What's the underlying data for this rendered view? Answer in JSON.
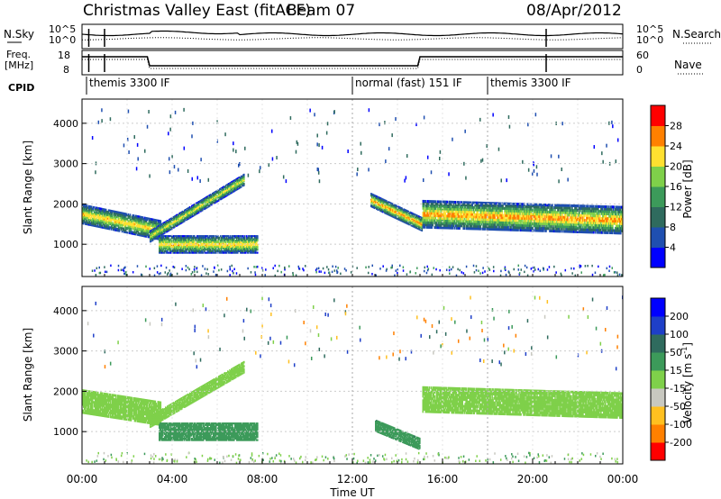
{
  "header": {
    "title": "Christmas Valley East (fitACF)",
    "beam": "Beam 07",
    "date": "08/Apr/2012"
  },
  "status_panel": {
    "left_labels": {
      "nsky": "N.Sky",
      "freq_line1": "Freq.",
      "freq_line2": "[MHz]",
      "cpid": "CPID"
    },
    "right_labels": {
      "nsearch": "N.Search",
      "nave": "Nave"
    },
    "nsky_ticks": [
      "10^5",
      "10^0"
    ],
    "freq_ticks": [
      "18",
      "8"
    ],
    "nsearch_ticks": [
      "10^5",
      "10^0"
    ],
    "nave_ticks": [
      "60",
      "0"
    ],
    "cpid_modes": [
      {
        "name": "themis 3300 IF",
        "start": 0.0,
        "end": 12.0
      },
      {
        "name": "normal (fast) 151 IF",
        "start": 12.0,
        "end": 18.0
      },
      {
        "name": "themis 3300 IF",
        "start": 18.0,
        "end": 24.0
      }
    ]
  },
  "x_axis": {
    "label": "Time UT",
    "ticks": [
      "00:00",
      "04:00",
      "08:00",
      "12:00",
      "16:00",
      "20:00",
      "00:00"
    ]
  },
  "colorbars": {
    "power": {
      "label": "Power [dB]",
      "ticks": [
        "28",
        "24",
        "20",
        "16",
        "12",
        "8",
        "4"
      ],
      "colors": [
        "#0000ff",
        "#1f4fb0",
        "#2f6b5e",
        "#3c9a5a",
        "#7fd04a",
        "#ffe030",
        "#ff8000",
        "#ff0000"
      ]
    },
    "velocity": {
      "label_main": "Velocity [m s",
      "label_sup": "-1",
      "label_end": "]",
      "ticks": [
        "200",
        "100",
        "50",
        "15",
        "-15",
        "-50",
        "-100",
        "-200"
      ],
      "colors": [
        "#0000ff",
        "#1e3fc8",
        "#2f6b5e",
        "#3c9a5a",
        "#7fd04a",
        "#c8c8c0",
        "#ffc020",
        "#ff8000",
        "#ff0000"
      ]
    }
  },
  "chart_data": [
    {
      "type": "heatmap",
      "panel": "power",
      "ylabel": "Slant Range [km]",
      "yticks": [
        "4000",
        "3000",
        "2000",
        "1000"
      ],
      "ylim": [
        200,
        4600
      ],
      "xlim": [
        0,
        24
      ],
      "grid": true,
      "features": [
        {
          "name": "main echo band (00-04 UT)",
          "t_start": 0.0,
          "t_end": 3.5,
          "range_center_start": 1750,
          "range_center_end": 1350,
          "width_km": 500,
          "peak_power_db": 24
        },
        {
          "name": "rising band (03-07 UT)",
          "t_start": 3.0,
          "t_end": 7.2,
          "range_center_start": 1200,
          "range_center_end": 2600,
          "width_km": 300,
          "peak_power_db": 22
        },
        {
          "name": "ground scatter patch",
          "t_start": 3.4,
          "t_end": 7.8,
          "range_center_start": 1000,
          "range_center_end": 1000,
          "width_km": 450,
          "peak_power_db": 24
        },
        {
          "name": "afternoon band (13-15 UT)",
          "t_start": 12.8,
          "t_end": 15.1,
          "range_center_start": 2100,
          "range_center_end": 1500,
          "width_km": 350,
          "peak_power_db": 26
        },
        {
          "name": "main band (15-24 UT)",
          "t_start": 15.1,
          "t_end": 24.0,
          "range_center_start": 1750,
          "range_center_end": 1600,
          "width_km": 700,
          "peak_power_db": 26
        }
      ]
    },
    {
      "type": "heatmap",
      "panel": "velocity",
      "ylabel": "Slant Range [km]",
      "yticks": [
        "4000",
        "3000",
        "2000",
        "1000"
      ],
      "ylim": [
        200,
        4600
      ],
      "xlim": [
        0,
        24
      ],
      "grid": true,
      "features": [
        {
          "name": "ground scatter (00-04 UT)",
          "t_start": 0.0,
          "t_end": 3.5,
          "range_center_start": 1750,
          "range_center_end": 1450,
          "width_km": 600,
          "velocity_ms": 0
        },
        {
          "name": "rising band",
          "t_start": 3.0,
          "t_end": 7.2,
          "range_center_start": 1250,
          "range_center_end": 2600,
          "width_km": 300,
          "velocity_ms": 0
        },
        {
          "name": "green patch (04-07 UT)",
          "t_start": 3.4,
          "t_end": 7.8,
          "range_center_start": 1000,
          "range_center_end": 1000,
          "width_km": 450,
          "velocity_ms": 30
        },
        {
          "name": "positive velocity patch (13-15 UT)",
          "t_start": 13.0,
          "t_end": 15.0,
          "range_center_start": 1150,
          "range_center_end": 700,
          "width_km": 300,
          "velocity_ms": 40
        },
        {
          "name": "ground scatter (15-24 UT)",
          "t_start": 15.1,
          "t_end": 24.0,
          "range_center_start": 1800,
          "range_center_end": 1650,
          "width_km": 650,
          "velocity_ms": 0
        }
      ]
    }
  ]
}
